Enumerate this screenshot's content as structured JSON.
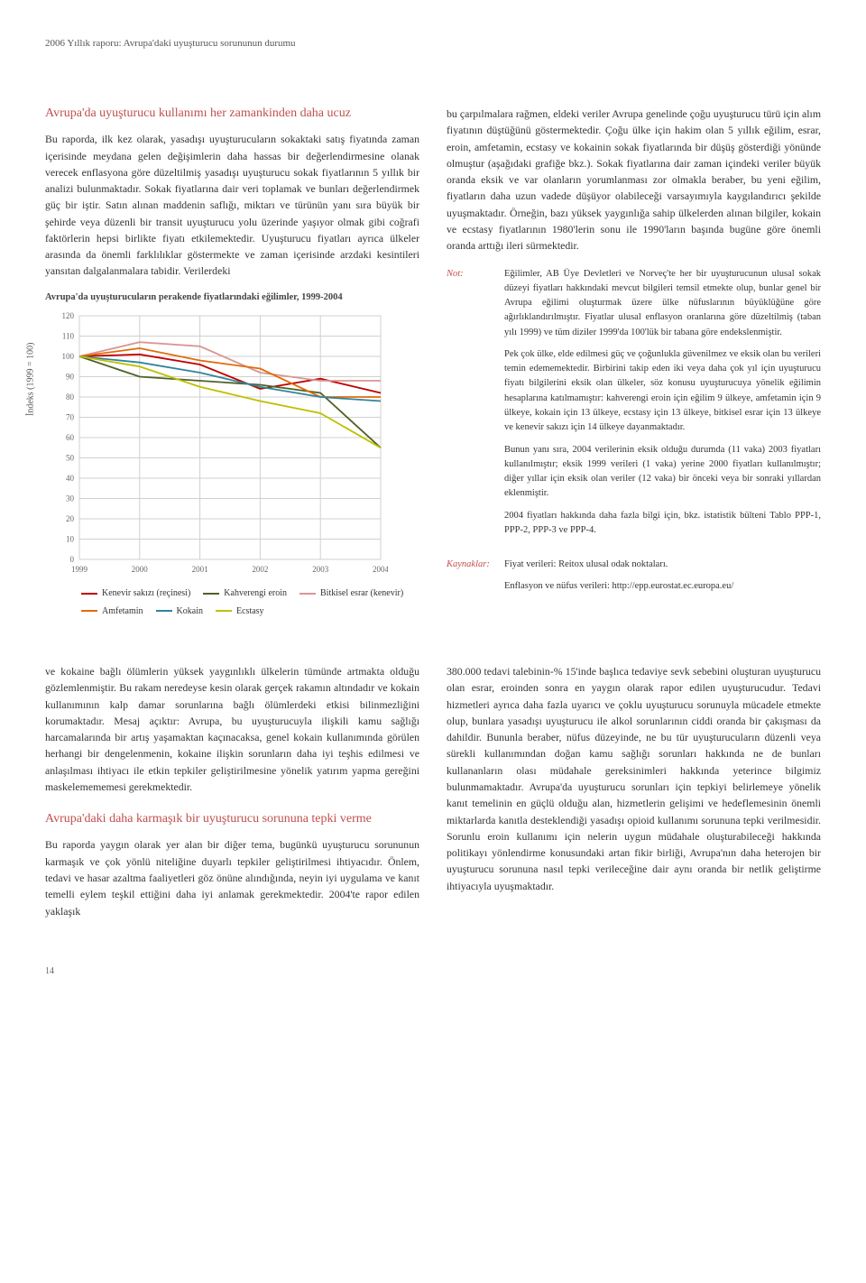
{
  "header": {
    "running_title": "2006 Yıllık raporu: Avrupa'daki uyuşturucu sorununun durumu"
  },
  "box": {
    "heading": "Avrupa'da uyuşturucu kullanımı her zamankinden daha ucuz",
    "left_para": "Bu raporda, ilk kez olarak, yasadışı uyuşturucuların sokaktaki satış fiyatında zaman içerisinde meydana gelen değişimlerin daha hassas bir değerlendirmesine olanak verecek enflasyona göre düzeltilmiş yasadışı uyuşturucu sokak fiyatlarının 5 yıllık bir analizi bulunmaktadır. Sokak fiyatlarına dair veri toplamak ve bunları değerlendirmek güç bir iştir. Satın alınan maddenin saflığı, miktarı ve türünün yanı sıra büyük bir şehirde veya düzenli bir transit uyuşturucu yolu üzerinde yaşıyor olmak gibi coğrafi faktörlerin hepsi birlikte fiyatı etkilemektedir. Uyuşturucu fiyatları ayrıca ülkeler arasında da önemli farklılıklar göstermekte ve zaman içerisinde arzdaki kesintileri yansıtan dalgalanmalara tabidir. Verilerdeki",
    "right_para": "bu çarpılmalara rağmen, eldeki veriler Avrupa genelinde çoğu uyuşturucu türü için alım fiyatının düştüğünü göstermektedir. Çoğu ülke için hakim olan 5 yıllık eğilim, esrar, eroin, amfetamin, ecstasy ve kokainin sokak fiyatlarında bir düşüş gösterdiği yönünde olmuştur (aşağıdaki grafiğe bkz.). Sokak fiyatlarına dair zaman içindeki veriler büyük oranda eksik ve var olanların yorumlanması zor olmakla beraber, bu yeni eğilim, fiyatların daha uzun vadede düşüyor olabileceği varsayımıyla kaygılandırıcı şekilde uyuşmaktadır. Örneğin, bazı yüksek yaygınlığa sahip ülkelerden alınan bilgiler, kokain ve ecstasy fiyatlarının 1980'lerin sonu ile 1990'ların başında bugüne göre önemli oranda arttığı ileri sürmektedir."
  },
  "chart": {
    "title": "Avrupa'da uyuşturucuların perakende fiyatlarındaki eğilimler, 1999-2004",
    "y_axis_label": "İndeks (1999 = 100)",
    "y_ticks": [
      "120",
      "110",
      "100",
      "90",
      "80",
      "70",
      "60",
      "50",
      "40",
      "30",
      "20",
      "10",
      "0"
    ],
    "x_ticks": [
      "1999",
      "2000",
      "2001",
      "2002",
      "2003",
      "2004"
    ],
    "ylim": [
      0,
      120
    ],
    "grid_color": "#d0d0d0",
    "background_color": "#ffffff",
    "line_width": 1.8,
    "series": [
      {
        "name": "Kenevir sakızı (reçinesi)",
        "color": "#c00000",
        "values": [
          100,
          101,
          96,
          84,
          89,
          82
        ]
      },
      {
        "name": "Kahverengi eroin",
        "color": "#4f6228",
        "values": [
          100,
          90,
          88,
          86,
          82,
          55
        ]
      },
      {
        "name": "Bitkisel esrar (kenevir)",
        "color": "#d99694",
        "values": [
          100,
          107,
          105,
          92,
          88,
          88
        ]
      },
      {
        "name": "Amfetamin",
        "color": "#e26b0a",
        "values": [
          100,
          104,
          98,
          94,
          80,
          80
        ]
      },
      {
        "name": "Kokain",
        "color": "#31849b",
        "values": [
          100,
          97,
          92,
          85,
          80,
          78
        ]
      },
      {
        "name": "Ecstasy",
        "color": "#bfbf00",
        "values": [
          100,
          95,
          85,
          78,
          72,
          55
        ]
      }
    ]
  },
  "notes": {
    "note_label": "Not:",
    "note_paras": [
      "Eğilimler, AB Üye Devletleri ve Norveç'te her bir uyuşturucunun ulusal sokak düzeyi fiyatları hakkındaki mevcut bilgileri temsil etmekte olup, bunlar genel bir Avrupa eğilimi oluşturmak üzere ülke nüfuslarının büyüklüğüne göre ağırlıklandırılmıştır. Fiyatlar ulusal enflasyon oranlarına göre düzeltilmiş (taban yılı 1999) ve tüm diziler 1999'da 100'lük bir tabana göre endekslenmiştir.",
      "Pek çok ülke, elde edilmesi güç ve çoğunlukla güvenilmez ve eksik olan bu verileri temin edememektedir. Birbirini takip eden iki veya daha çok yıl için uyuşturucu fiyatı bilgilerini eksik olan ülkeler, söz konusu uyuşturucuya yönelik eğilimin hesaplarına katılmamıştır: kahverengi eroin için eğilim 9 ülkeye, amfetamin için 9 ülkeye, kokain için 13 ülkeye, ecstasy için 13 ülkeye, bitkisel esrar için 13 ülkeye ve kenevir sakızı için 14 ülkeye dayanmaktadır.",
      "Bunun yanı sıra, 2004 verilerinin eksik olduğu durumda (11 vaka) 2003 fiyatları kullanılmıştır; eksik 1999 verileri (1 vaka) yerine 2000 fiyatları kullanılmıştır; diğer yıllar için eksik olan veriler (12 vaka) bir önceki veya bir sonraki yıllardan eklenmiştir.",
      "2004 fiyatları hakkında daha fazla bilgi için, bkz. istatistik bülteni Tablo PPP-1, PPP-2, PPP-3 ve PPP-4."
    ],
    "sources_label": "Kaynaklar:",
    "sources_paras": [
      "Fiyat verileri: Reitox ulusal odak noktaları.",
      "Enflasyon ve nüfus verileri: http://epp.eurostat.ec.europa.eu/"
    ]
  },
  "lower": {
    "left_para1": "ve kokaine bağlı ölümlerin yüksek yaygınlıklı ülkelerin tümünde artmakta olduğu gözlemlenmiştir. Bu rakam neredeyse kesin olarak gerçek rakamın altındadır ve kokain kullanımının kalp damar sorunlarına bağlı ölümlerdeki etkisi bilinmezliğini korumaktadır. Mesaj açıktır: Avrupa, bu uyuşturucuyla ilişkili kamu sağlığı harcamalarında bir artış yaşamaktan kaçınacaksa, genel kokain kullanımında görülen herhangi bir dengelenmenin, kokaine ilişkin sorunların daha iyi teşhis edilmesi ve anlaşılması ihtiyacı ile etkin tepkiler geliştirilmesine yönelik yatırım yapma gereğini maskelemememesi gerekmektedir.",
    "subheading": "Avrupa'daki daha karmaşık bir uyuşturucu sorununa tepki verme",
    "left_para2": "Bu raporda yaygın olarak yer alan bir diğer tema, bugünkü uyuşturucu sorununun karmaşık ve çok yönlü niteliğine duyarlı tepkiler geliştirilmesi ihtiyacıdır. Önlem, tedavi ve hasar azaltma faaliyetleri göz önüne alındığında, neyin iyi uygulama ve kanıt temelli eylem teşkil ettiğini daha iyi anlamak gerekmektedir. 2004'te rapor edilen yaklaşık",
    "right_para": "380.000 tedavi talebinin-% 15'inde başlıca tedaviye sevk sebebini oluşturan uyuşturucu olan esrar, eroinden sonra en yaygın olarak rapor edilen uyuşturucudur. Tedavi hizmetleri ayrıca daha fazla uyarıcı ve çoklu uyuşturucu sorunuyla mücadele etmekte olup, bunlara yasadışı uyuşturucu ile alkol sorunlarının ciddi oranda bir çakışması da dahildir. Bununla beraber, nüfus düzeyinde, ne bu tür uyuşturucuların düzenli veya sürekli kullanımından doğan kamu sağlığı sorunları hakkında ne de bunları kullananların olası müdahale gereksinimleri hakkında yeterince bilgimiz bulunmamaktadır. Avrupa'da uyuşturucu sorunları için tepkiyi belirlemeye yönelik kanıt temelinin en güçlü olduğu alan, hizmetlerin gelişimi ve hedeflemesinin önemli miktarlarda kanıtla desteklendiği yasadışı opioid kullanımı sorununa tepki verilmesidir. Sorunlu eroin kullanımı için nelerin uygun müdahale oluşturabileceği hakkında politikayı yönlendirme konusundaki artan fikir birliği, Avrupa'nın daha heterojen bir uyuşturucu sorununa nasıl tepki verileceğine dair aynı oranda bir netlik geliştirme ihtiyacıyla uyuşmaktadır."
  },
  "page_number": "14"
}
